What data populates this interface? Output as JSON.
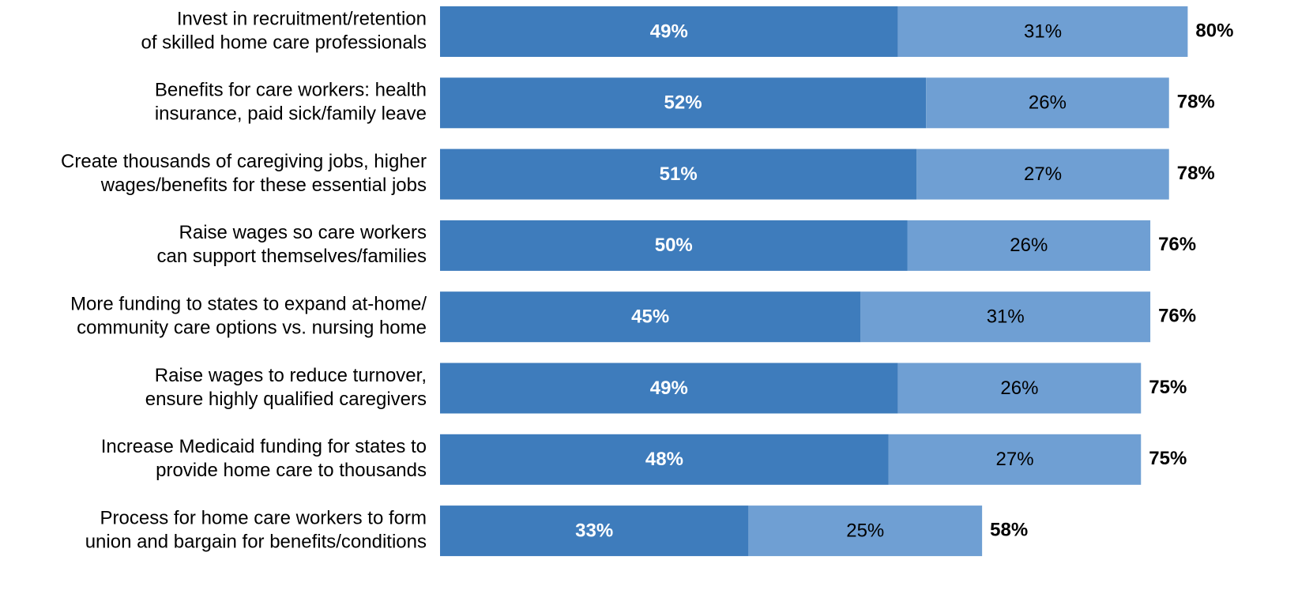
{
  "chart_data": {
    "type": "stacked_bar_horizontal",
    "categories": [
      [
        "Invest in recruitment/retention",
        "of skilled home care professionals"
      ],
      [
        "Benefits for care workers: health",
        "insurance, paid sick/family leave"
      ],
      [
        "Create thousands of caregiving jobs, higher",
        "wages/benefits for these essential jobs"
      ],
      [
        "Raise wages so care workers",
        "can support themselves/families"
      ],
      [
        "More funding to states to expand at-home/",
        "community care options vs. nursing home"
      ],
      [
        "Raise wages to reduce turnover,",
        "ensure highly qualified caregivers"
      ],
      [
        "Increase Medicaid funding for states to",
        "provide home care to thousands"
      ],
      [
        "Process for home care workers to form",
        "union and bargain for benefits/conditions"
      ]
    ],
    "series": [
      {
        "color": "#3e7cbc",
        "values": [
          49,
          52,
          51,
          50,
          45,
          49,
          48,
          33
        ],
        "value_labels": [
          "49%",
          "52%",
          "51%",
          "50%",
          "45%",
          "49%",
          "48%",
          "33%"
        ]
      },
      {
        "color": "#6f9fd3",
        "values": [
          31,
          26,
          27,
          26,
          31,
          26,
          27,
          25
        ],
        "value_labels": [
          "31%",
          "26%",
          "27%",
          "26%",
          "31%",
          "26%",
          "27%",
          "25%"
        ]
      }
    ],
    "totals": [
      80,
      78,
      78,
      76,
      76,
      75,
      75,
      58
    ],
    "total_labels": [
      "80%",
      "78%",
      "78%",
      "76%",
      "76%",
      "75%",
      "75%",
      "58%"
    ]
  }
}
